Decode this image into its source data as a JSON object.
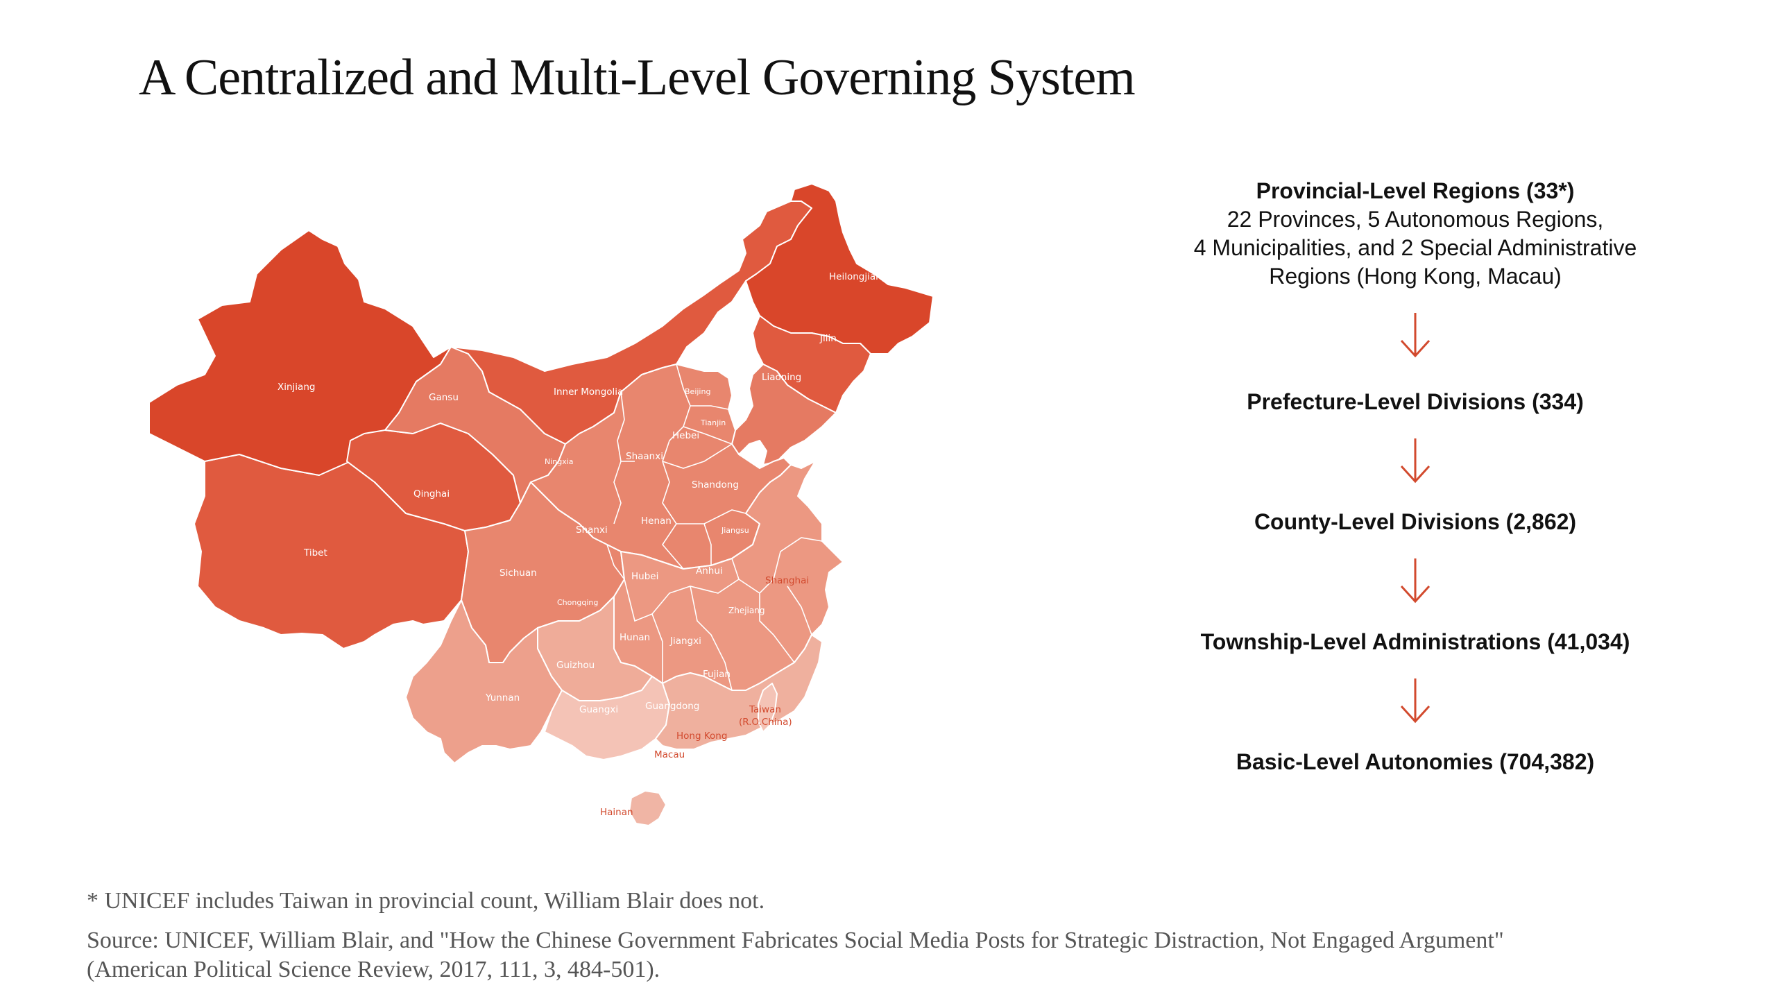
{
  "title": "A Centralized and Multi-Level Governing System",
  "colors": {
    "darkest": "#d9462a",
    "dark": "#e05a3f",
    "medium": "#e57a62",
    "light": "#eda08c",
    "lightest": "#f4c3b6",
    "arrow": "#d24a2e"
  },
  "map": {
    "regions": [
      {
        "name": "Xinjiang",
        "shade": "darkest"
      },
      {
        "name": "Tibet",
        "shade": "dark"
      },
      {
        "name": "Qinghai",
        "shade": "dark"
      },
      {
        "name": "Gansu",
        "shade": "medium"
      },
      {
        "name": "Inner Mongolia",
        "shade": "dark"
      },
      {
        "name": "Heilongjiang",
        "shade": "darkest"
      },
      {
        "name": "Jilin",
        "shade": "dark"
      },
      {
        "name": "Liaoning",
        "shade": "medium"
      },
      {
        "name": "Sichuan",
        "shade": "medium"
      },
      {
        "name": "Yunnan",
        "shade": "light"
      },
      {
        "name": "Guangxi",
        "shade": "lightest"
      },
      {
        "name": "Guangdong",
        "shade": "light"
      },
      {
        "name": "Hainan",
        "shade": "light"
      },
      {
        "name": "Taiwan",
        "shade": "lightest"
      }
    ],
    "labels": {
      "xinjiang": "Xinjiang",
      "gansu": "Gansu",
      "inner_mongolia": "Inner Mongolia",
      "heilongjiang": "Heilongjiang",
      "jilin": "Jilin",
      "liaoning": "Liaoning",
      "beijing": "Beijing",
      "tianjin": "Tianjin",
      "hebei": "Hebei",
      "ningxia": "Ningxia",
      "shaanxi": "Shaanxi",
      "shandong": "Shandong",
      "qinghai": "Qinghai",
      "shanxi": "Shanxi",
      "henan": "Henan",
      "jiangsu": "Jiangsu",
      "tibet": "Tibet",
      "sichuan": "Sichuan",
      "hubei": "Hubei",
      "anhui": "Anhui",
      "shanghai": "Shanghai",
      "chongqing": "Chongqing",
      "zhejiang": "Zhejiang",
      "hunan": "Hunan",
      "jiangxi": "Jiangxi",
      "guizhou": "Guizhou",
      "fujian": "Fujian",
      "yunnan": "Yunnan",
      "guangxi": "Guangxi",
      "guangdong": "Guangdong",
      "taiwan_1": "Taiwan",
      "taiwan_2": "(R.O.China)",
      "hong_kong": "Hong Kong",
      "macau": "Macau",
      "hainan": "Hainan"
    }
  },
  "hierarchy": {
    "provincial_title": "Provincial-Level Regions (33*)",
    "provincial_desc_1": "22 Provinces, 5 Autonomous Regions,",
    "provincial_desc_2": "4 Municipalities, and 2 Special Administrative",
    "provincial_desc_3": "Regions (Hong Kong, Macau)",
    "prefecture": "Prefecture-Level Divisions (334)",
    "county": "County-Level Divisions (2,862)",
    "township": "Township-Level Administrations (41,034)",
    "basic": "Basic-Level Autonomies (704,382)",
    "arrow_icon": "down-arrow-icon"
  },
  "footnote": "* UNICEF includes Taiwan in provincial count, William Blair does not.",
  "source_line_1": "Source: UNICEF, William Blair, and \"How the Chinese Government Fabricates Social Media Posts for Strategic Distraction, Not Engaged Argument\"",
  "source_line_2": "(American Political Science Review, 2017, 111, 3, 484-501)."
}
